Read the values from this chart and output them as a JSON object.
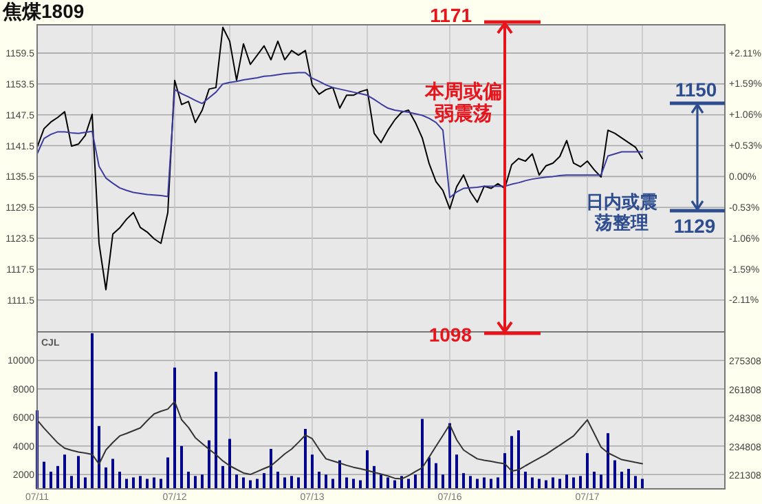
{
  "chart_data": [
    {
      "type": "line",
      "title": "焦煤1809",
      "categories": [
        null,
        null,
        null,
        null,
        null,
        null,
        null,
        null,
        null,
        null,
        null,
        null,
        null,
        null,
        null,
        null,
        null,
        null,
        null,
        null,
        null,
        null,
        null,
        null,
        null,
        null,
        null,
        null,
        null,
        null,
        null,
        null,
        null,
        null,
        null,
        null,
        null,
        null,
        null,
        null,
        null,
        null,
        null,
        null,
        null,
        null,
        null,
        null,
        null,
        null,
        null,
        null,
        null,
        null,
        null,
        null,
        null,
        null,
        null,
        null,
        null,
        null,
        null,
        null,
        null,
        null,
        null,
        null,
        null,
        null,
        null,
        null,
        null,
        null,
        null,
        null,
        null,
        null,
        null,
        null,
        null,
        null,
        null,
        null,
        null,
        null,
        null,
        null,
        null,
        null,
        null,
        null,
        null,
        null,
        null,
        null,
        null,
        null,
        null,
        null,
        null
      ],
      "ylim": [
        1105.3,
        1165
      ],
      "yticks": [
        1111.5,
        1117.5,
        1123.5,
        1129.5,
        1135.5,
        1141.5,
        1147.5,
        1153.5,
        1159.5
      ],
      "y2lim": [
        -2.67,
        2.6
      ],
      "y2ticks": [
        {
          "value": -2.11,
          "label": "-2.11%"
        },
        {
          "value": -1.59,
          "label": "-1.59%"
        },
        {
          "value": -1.06,
          "label": "-1.06%"
        },
        {
          "value": -0.53,
          "label": "-0.53%"
        },
        {
          "value": 0,
          "label": "0.00%"
        },
        {
          "value": 0.53,
          "label": "+0.53%"
        },
        {
          "value": 1.06,
          "label": "+1.06%"
        },
        {
          "value": 1.59,
          "label": "+1.59%"
        },
        {
          "value": 2.11,
          "label": "+2.11%"
        }
      ],
      "tick_labels": "y",
      "grid": true,
      "series": [
        {
          "color": "#000000",
          "values": [
            1141.2,
            1144.8,
            1146.1,
            1147,
            1148.1,
            1141.4,
            1141.8,
            1143.5,
            1147.6,
            1122.5,
            1113.5,
            1124.3,
            1125.5,
            1127.2,
            1128.5,
            1125.6,
            1124.7,
            1123.4,
            1122.5,
            1128.5,
            1154.2,
            1149.5,
            1150.1,
            1146,
            1148.4,
            1152.5,
            1152.8,
            1164.5,
            1161.8,
            1154.2,
            1161.3,
            1157.3,
            1159.1,
            1160.9,
            1158.2,
            1161.8,
            1158.2,
            1160,
            1159.1,
            1160,
            1153.3,
            1151.5,
            1152.4,
            1152.8,
            1148.8,
            1151.3,
            1151.3,
            1152,
            1152.4,
            1143.9,
            1142.1,
            1144.5,
            1146.5,
            1148,
            1148.4,
            1146,
            1143,
            1138,
            1134.5,
            1132.8,
            1129.2,
            1133.5,
            1135.8,
            1132.5,
            1130.5,
            1133.6,
            1133.2,
            1134.1,
            1133.2,
            1137.8,
            1139,
            1138.5,
            1139.9,
            1135.8,
            1137.6,
            1138.1,
            1139.4,
            1142.5,
            1138.1,
            1137.4,
            1138.5,
            1136.8,
            1135.4,
            1144.5,
            1143.9,
            1143,
            1142.1,
            1141.2,
            1139,
            null,
            null,
            null,
            null,
            null,
            null,
            null,
            null,
            null,
            null,
            null,
            null
          ]
        },
        {
          "color": "#3c3ca0",
          "values": [
            1139.9,
            1142.9,
            1143.7,
            1144.2,
            1144.2,
            1144,
            1143.9,
            1144.1,
            1144.3,
            1137.5,
            1135.2,
            1134.2,
            1133.3,
            1132.8,
            1132.4,
            1132.2,
            1132,
            1131.9,
            1131.8,
            1131.6,
            1152.4,
            1151.6,
            1151,
            1150.3,
            1149.7,
            1150.8,
            1151.9,
            1153.5,
            1153.8,
            1154,
            1154.3,
            1154.5,
            1154.7,
            1155,
            1155.1,
            1155.3,
            1155.5,
            1155.6,
            1155.7,
            1155.7,
            1154.6,
            1154,
            1153.3,
            1152.8,
            1152.5,
            1152.2,
            1151.9,
            1151.6,
            1151.3,
            1150.5,
            1149.6,
            1148.8,
            1148.4,
            1148.2,
            1148,
            1147.7,
            1147.4,
            1146.8,
            1146,
            1144.5,
            1131.4,
            1132.5,
            1133.2,
            1133.3,
            1133.4,
            1133.6,
            1133.6,
            1133.6,
            1133.6,
            1134,
            1134.3,
            1134.7,
            1135,
            1135.2,
            1135.4,
            1135.5,
            1135.7,
            1135.8,
            1135.8,
            1135.8,
            1135.8,
            1135.8,
            1135.8,
            1139.5,
            1139.9,
            1140.3,
            1140.3,
            1140.3,
            1140.3,
            null,
            null,
            null,
            null,
            null,
            null,
            null,
            null,
            null,
            null,
            null,
            null
          ]
        }
      ],
      "annotations": [
        "1171",
        "本周或偏弱震荡",
        "1098",
        "1150",
        "1129",
        "日内或震荡整理"
      ]
    },
    {
      "type": "bar",
      "categories": [
        "07/11",
        null,
        null,
        null,
        null,
        null,
        null,
        null,
        null,
        null,
        null,
        null,
        null,
        null,
        null,
        null,
        null,
        null,
        null,
        null,
        "07/12",
        null,
        null,
        null,
        null,
        null,
        null,
        null,
        null,
        null,
        null,
        null,
        null,
        null,
        null,
        null,
        null,
        null,
        null,
        null,
        "07/13",
        null,
        null,
        null,
        null,
        null,
        null,
        null,
        null,
        null,
        null,
        null,
        null,
        null,
        null,
        null,
        null,
        null,
        null,
        null,
        "07/16",
        null,
        null,
        null,
        null,
        null,
        null,
        null,
        null,
        null,
        null,
        null,
        null,
        null,
        null,
        null,
        null,
        null,
        null,
        null,
        "07/17",
        null,
        null,
        null,
        null,
        null,
        null,
        null,
        null,
        null,
        null,
        null,
        null,
        null,
        null,
        null,
        null,
        null,
        null,
        null,
        null
      ],
      "ylim": [
        1000,
        12000
      ],
      "yticks": [
        2000,
        4000,
        6000,
        8000,
        10000
      ],
      "y2lim": [
        214800,
        289000
      ],
      "y2ticks": [
        221308,
        234808,
        248308,
        261808,
        275308
      ],
      "grid": true,
      "series": [
        {
          "color": "#00008b",
          "values": [
            6500,
            2900,
            2200,
            2600,
            3400,
            1900,
            3300,
            1800,
            11900,
            5400,
            2500,
            3100,
            2200,
            1700,
            1800,
            1900,
            1700,
            1800,
            1700,
            3200,
            9500,
            4000,
            2200,
            1900,
            2000,
            4400,
            9200,
            2600,
            4500,
            2000,
            1800,
            1600,
            1700,
            2100,
            3800,
            2200,
            1800,
            1900,
            1800,
            5200,
            3400,
            2200,
            2000,
            1700,
            3000,
            1800,
            1700,
            1600,
            3700,
            2600,
            2000,
            1800,
            1600,
            1900,
            1700,
            2000,
            5900,
            3200,
            2800,
            2000,
            5600,
            3400,
            2100,
            1900,
            1700,
            1800,
            1700,
            1800,
            3500,
            4700,
            5100,
            2200,
            1800,
            1700,
            1600,
            1800,
            1700,
            2000,
            1800,
            1900,
            3500,
            2200,
            2000,
            4900,
            3000,
            2200,
            2400,
            1900,
            1700,
            null,
            null,
            null,
            null,
            null,
            null,
            null,
            null,
            null,
            null,
            null,
            null
          ]
        },
        {
          "type": "line",
          "axis": "y2",
          "color": "#333333",
          "values": [
            247400,
            243500,
            240000,
            236500,
            234000,
            233000,
            232200,
            231700,
            231100,
            226500,
            233200,
            236700,
            239800,
            241000,
            242300,
            243600,
            247000,
            250200,
            251500,
            252500,
            256100,
            247500,
            243800,
            239000,
            236200,
            233500,
            231000,
            228000,
            225700,
            224000,
            222300,
            221600,
            223000,
            224400,
            225700,
            228500,
            231300,
            233600,
            236800,
            240200,
            238500,
            233500,
            229000,
            228000,
            227000,
            225900,
            225000,
            224300,
            223500,
            222600,
            221800,
            220900,
            219800,
            219500,
            221000,
            223000,
            224800,
            229800,
            235000,
            240000,
            245200,
            238000,
            233200,
            231000,
            229000,
            228300,
            227800,
            227200,
            226700,
            223200,
            223800,
            225700,
            227500,
            229300,
            231100,
            233300,
            235400,
            237600,
            239800,
            243600,
            247400,
            241000,
            234500,
            231800,
            230200,
            228600,
            228000,
            227300,
            226700,
            null,
            null,
            null,
            null,
            null,
            null,
            null,
            null,
            null,
            null,
            null,
            null
          ]
        }
      ],
      "annotations": [
        "CJL"
      ]
    }
  ]
}
